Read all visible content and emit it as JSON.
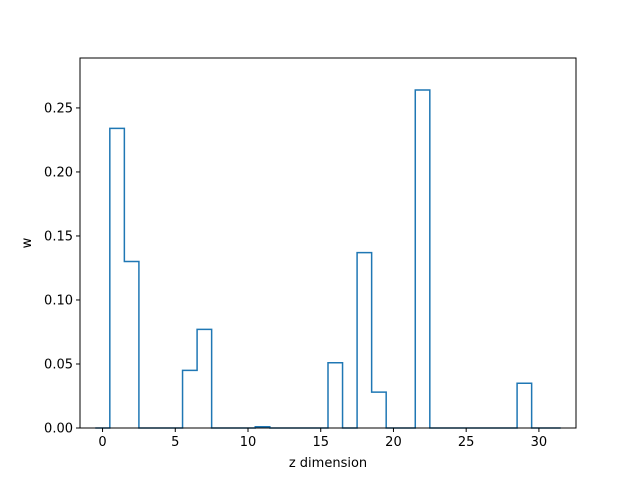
{
  "chart_data": {
    "type": "bar",
    "style": "step-histogram",
    "title": "",
    "xlabel": "z dimension",
    "ylabel": "w",
    "xlim": [
      -1.55,
      32.55
    ],
    "ylim": [
      0,
      0.289
    ],
    "xticks": [
      0,
      5,
      10,
      15,
      20,
      25,
      30
    ],
    "yticks": [
      0.0,
      0.05,
      0.1,
      0.15,
      0.2,
      0.25
    ],
    "ytick_labels": [
      "0.00",
      "0.05",
      "0.10",
      "0.15",
      "0.20",
      "0.25"
    ],
    "x": [
      0,
      1,
      2,
      3,
      4,
      5,
      6,
      7,
      8,
      9,
      10,
      11,
      12,
      13,
      14,
      15,
      16,
      17,
      18,
      19,
      20,
      21,
      22,
      23,
      24,
      25,
      26,
      27,
      28,
      29,
      30,
      31
    ],
    "values": [
      0,
      0.234,
      0.13,
      0,
      0,
      0,
      0.045,
      0.077,
      0,
      0,
      0,
      0.001,
      0,
      0,
      0,
      0,
      0.051,
      0,
      0.137,
      0.028,
      0,
      0,
      0.264,
      0,
      0,
      0,
      0,
      0,
      0,
      0.035,
      0,
      0
    ],
    "line_color": "#1f77b4",
    "grid": false,
    "legend": "none"
  }
}
